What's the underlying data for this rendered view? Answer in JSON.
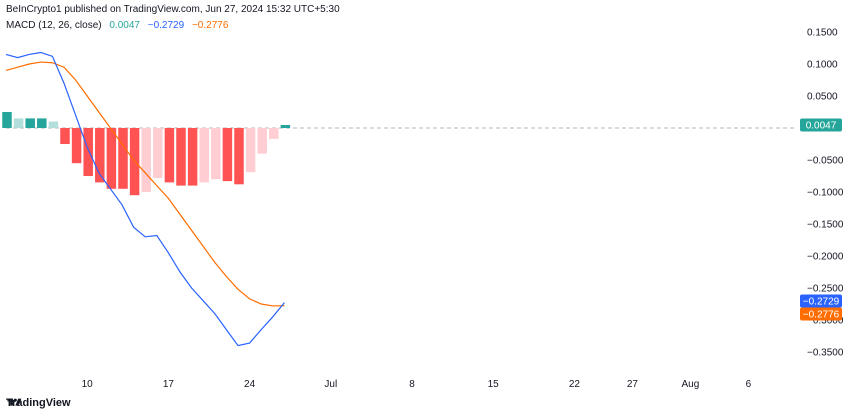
{
  "header": {
    "published_text": "BeInCrypto1 published on TradingView.com, Jun 27, 2024 15:32 UTC+5:30"
  },
  "legend": {
    "indicator": "MACD (12, 26, close)",
    "hist_value": "0.0047",
    "macd_value": "−0.2729",
    "signal_value": "−0.2776"
  },
  "footer": {
    "brand": "TradingView"
  },
  "colors": {
    "macd_line": "#2962ff",
    "signal_line": "#ff6d00",
    "hist_pos_strong": "#26a69a",
    "hist_pos_weak": "#b2dfdb",
    "hist_neg_strong": "#ff5252",
    "hist_neg_weak": "#ffcdd2"
  },
  "chart_data": {
    "type": "line",
    "title": "",
    "x_tick_labels": [
      "10",
      "17",
      "24",
      "Jul",
      "8",
      "15",
      "22",
      "27",
      "Aug",
      "6"
    ],
    "y_tick_labels": [
      "0.1500",
      "0.1000",
      "0.0500",
      "0.0000",
      "−0.0500",
      "−0.1000",
      "−0.1500",
      "−0.2000",
      "−0.2500",
      "−0.3000",
      "−0.3500"
    ],
    "y_ticks": [
      0.15,
      0.1,
      0.05,
      0.0,
      -0.05,
      -0.1,
      -0.15,
      -0.2,
      -0.25,
      -0.3,
      -0.35
    ],
    "ylim": [
      -0.38,
      0.17
    ],
    "x": [
      "Jun 3",
      "Jun 4",
      "Jun 5",
      "Jun 6",
      "Jun 7",
      "Jun 8",
      "Jun 9",
      "Jun 10",
      "Jun 11",
      "Jun 12",
      "Jun 13",
      "Jun 14",
      "Jun 15",
      "Jun 16",
      "Jun 17",
      "Jun 18",
      "Jun 19",
      "Jun 20",
      "Jun 21",
      "Jun 22",
      "Jun 23",
      "Jun 24",
      "Jun 25",
      "Jun 26",
      "Jun 27"
    ],
    "series": [
      {
        "name": "MACD",
        "values": [
          0.115,
          0.11,
          0.115,
          0.118,
          0.112,
          0.07,
          0.02,
          -0.03,
          -0.07,
          -0.095,
          -0.12,
          -0.155,
          -0.17,
          -0.168,
          -0.195,
          -0.225,
          -0.25,
          -0.27,
          -0.29,
          -0.315,
          -0.34,
          -0.336,
          -0.315,
          -0.295,
          -0.2729
        ]
      },
      {
        "name": "Signal",
        "values": [
          0.09,
          0.095,
          0.1,
          0.103,
          0.102,
          0.095,
          0.075,
          0.05,
          0.025,
          0.0,
          -0.025,
          -0.05,
          -0.07,
          -0.09,
          -0.11,
          -0.135,
          -0.16,
          -0.185,
          -0.21,
          -0.232,
          -0.252,
          -0.267,
          -0.275,
          -0.278,
          -0.2776
        ]
      },
      {
        "name": "Histogram",
        "type": "bar",
        "values": [
          0.025,
          0.015,
          0.015,
          0.015,
          0.01,
          -0.025,
          -0.055,
          -0.075,
          -0.085,
          -0.095,
          -0.095,
          -0.105,
          -0.1,
          -0.078,
          -0.085,
          -0.09,
          -0.09,
          -0.085,
          -0.08,
          -0.083,
          -0.088,
          -0.069,
          -0.04,
          -0.017,
          0.0047
        ]
      }
    ],
    "last_value_labels": {
      "hist": "0.0047",
      "macd": "−0.2729",
      "signal": "−0.2776"
    },
    "grid": false
  }
}
